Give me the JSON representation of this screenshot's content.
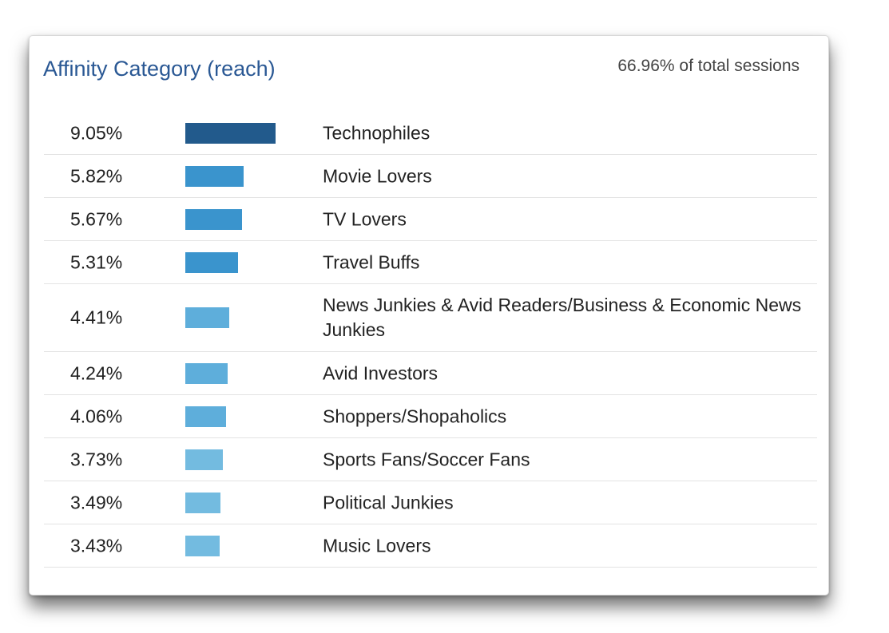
{
  "card": {
    "title": "Affinity Category (reach)",
    "subtitle": "66.96% of total sessions"
  },
  "chart_data": {
    "type": "bar",
    "orientation": "horizontal",
    "title": "Affinity Category (reach)",
    "subtitle": "66.96% of total sessions",
    "categories": [
      "Technophiles",
      "Movie Lovers",
      "TV Lovers",
      "Travel Buffs",
      "News Junkies & Avid Readers/Business & Economic News Junkies",
      "Avid Investors",
      "Shoppers/Shopaholics",
      "Sports Fans/Soccer Fans",
      "Political Junkies",
      "Music Lovers"
    ],
    "values": [
      9.05,
      5.82,
      5.67,
      5.31,
      4.41,
      4.24,
      4.06,
      3.73,
      3.49,
      3.43
    ],
    "value_labels": [
      "9.05%",
      "5.82%",
      "5.67%",
      "5.31%",
      "4.41%",
      "4.24%",
      "4.06%",
      "3.73%",
      "3.49%",
      "3.43%"
    ],
    "bar_colors": [
      "#225a8c",
      "#3a94cd",
      "#3a94cd",
      "#3a94cd",
      "#5eaedb",
      "#5eaedb",
      "#5eaedb",
      "#73bbe0",
      "#73bbe0",
      "#73bbe0"
    ],
    "grid": false,
    "legend": "none"
  }
}
